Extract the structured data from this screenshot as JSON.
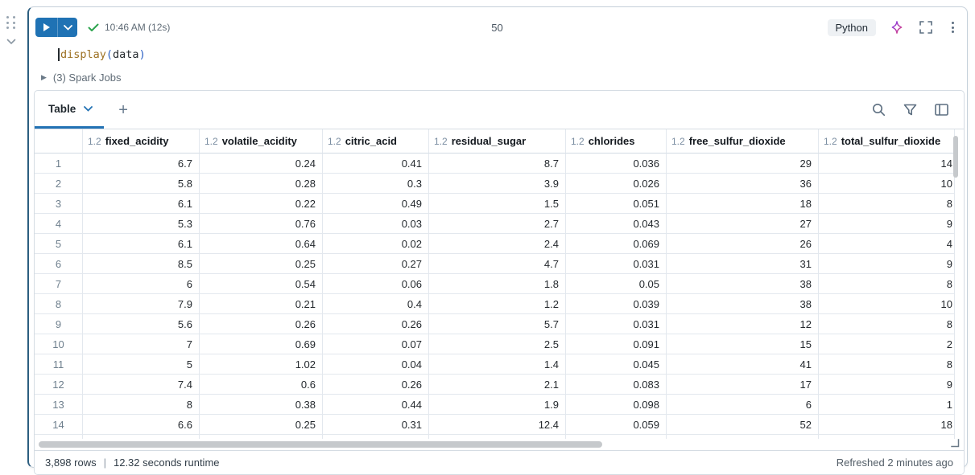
{
  "cell": {
    "timestamp": "10:46 AM (12s)",
    "number": "50",
    "language": "Python",
    "code": {
      "function": "display",
      "open_paren": "(",
      "argument": "data",
      "close_paren": ")"
    },
    "spark_jobs_label": "(3) Spark Jobs"
  },
  "results": {
    "active_tab": "Table",
    "add_tab_label": "+",
    "footer": {
      "row_count": "3,898 rows",
      "separator": "|",
      "runtime": "12.32 seconds runtime",
      "refreshed": "Refreshed 2 minutes ago"
    }
  },
  "table": {
    "numeric_type_badge": "1.2",
    "columns": [
      "fixed_acidity",
      "volatile_acidity",
      "citric_acid",
      "residual_sugar",
      "chlorides",
      "free_sulfur_dioxide",
      "total_sulfur_dioxide"
    ],
    "rows": [
      {
        "n": "1",
        "values": [
          "6.7",
          "0.24",
          "0.41",
          "8.7",
          "0.036",
          "29",
          "14"
        ]
      },
      {
        "n": "2",
        "values": [
          "5.8",
          "0.28",
          "0.3",
          "3.9",
          "0.026",
          "36",
          "10"
        ]
      },
      {
        "n": "3",
        "values": [
          "6.1",
          "0.22",
          "0.49",
          "1.5",
          "0.051",
          "18",
          "8"
        ]
      },
      {
        "n": "4",
        "values": [
          "5.3",
          "0.76",
          "0.03",
          "2.7",
          "0.043",
          "27",
          "9"
        ]
      },
      {
        "n": "5",
        "values": [
          "6.1",
          "0.64",
          "0.02",
          "2.4",
          "0.069",
          "26",
          "4"
        ]
      },
      {
        "n": "6",
        "values": [
          "8.5",
          "0.25",
          "0.27",
          "4.7",
          "0.031",
          "31",
          "9"
        ]
      },
      {
        "n": "7",
        "values": [
          "6",
          "0.54",
          "0.06",
          "1.8",
          "0.05",
          "38",
          "8"
        ]
      },
      {
        "n": "8",
        "values": [
          "7.9",
          "0.21",
          "0.4",
          "1.2",
          "0.039",
          "38",
          "10"
        ]
      },
      {
        "n": "9",
        "values": [
          "5.6",
          "0.26",
          "0.26",
          "5.7",
          "0.031",
          "12",
          "8"
        ]
      },
      {
        "n": "10",
        "values": [
          "7",
          "0.69",
          "0.07",
          "2.5",
          "0.091",
          "15",
          "2"
        ]
      },
      {
        "n": "11",
        "values": [
          "5",
          "1.02",
          "0.04",
          "1.4",
          "0.045",
          "41",
          "8"
        ]
      },
      {
        "n": "12",
        "values": [
          "7.4",
          "0.6",
          "0.26",
          "2.1",
          "0.083",
          "17",
          "9"
        ]
      },
      {
        "n": "13",
        "values": [
          "8",
          "0.38",
          "0.44",
          "1.9",
          "0.098",
          "6",
          "1"
        ]
      },
      {
        "n": "14",
        "values": [
          "6.6",
          "0.25",
          "0.31",
          "12.4",
          "0.059",
          "52",
          "18"
        ]
      }
    ]
  },
  "icons": {
    "run": "play-triangle",
    "run_dropdown": "chevron-down",
    "success": "checkmark",
    "assistant": "sparkle",
    "fullscreen": "corner-brackets",
    "more": "kebab-dots",
    "search": "magnifier",
    "filter": "funnel",
    "columns": "split-panel",
    "drag": "six-dots",
    "resize": "corner-handle"
  },
  "colors": {
    "accent_blue": "#2272b4",
    "run_button": "#1f72b4",
    "success_green": "#2da44e",
    "border": "#d5dce3"
  }
}
